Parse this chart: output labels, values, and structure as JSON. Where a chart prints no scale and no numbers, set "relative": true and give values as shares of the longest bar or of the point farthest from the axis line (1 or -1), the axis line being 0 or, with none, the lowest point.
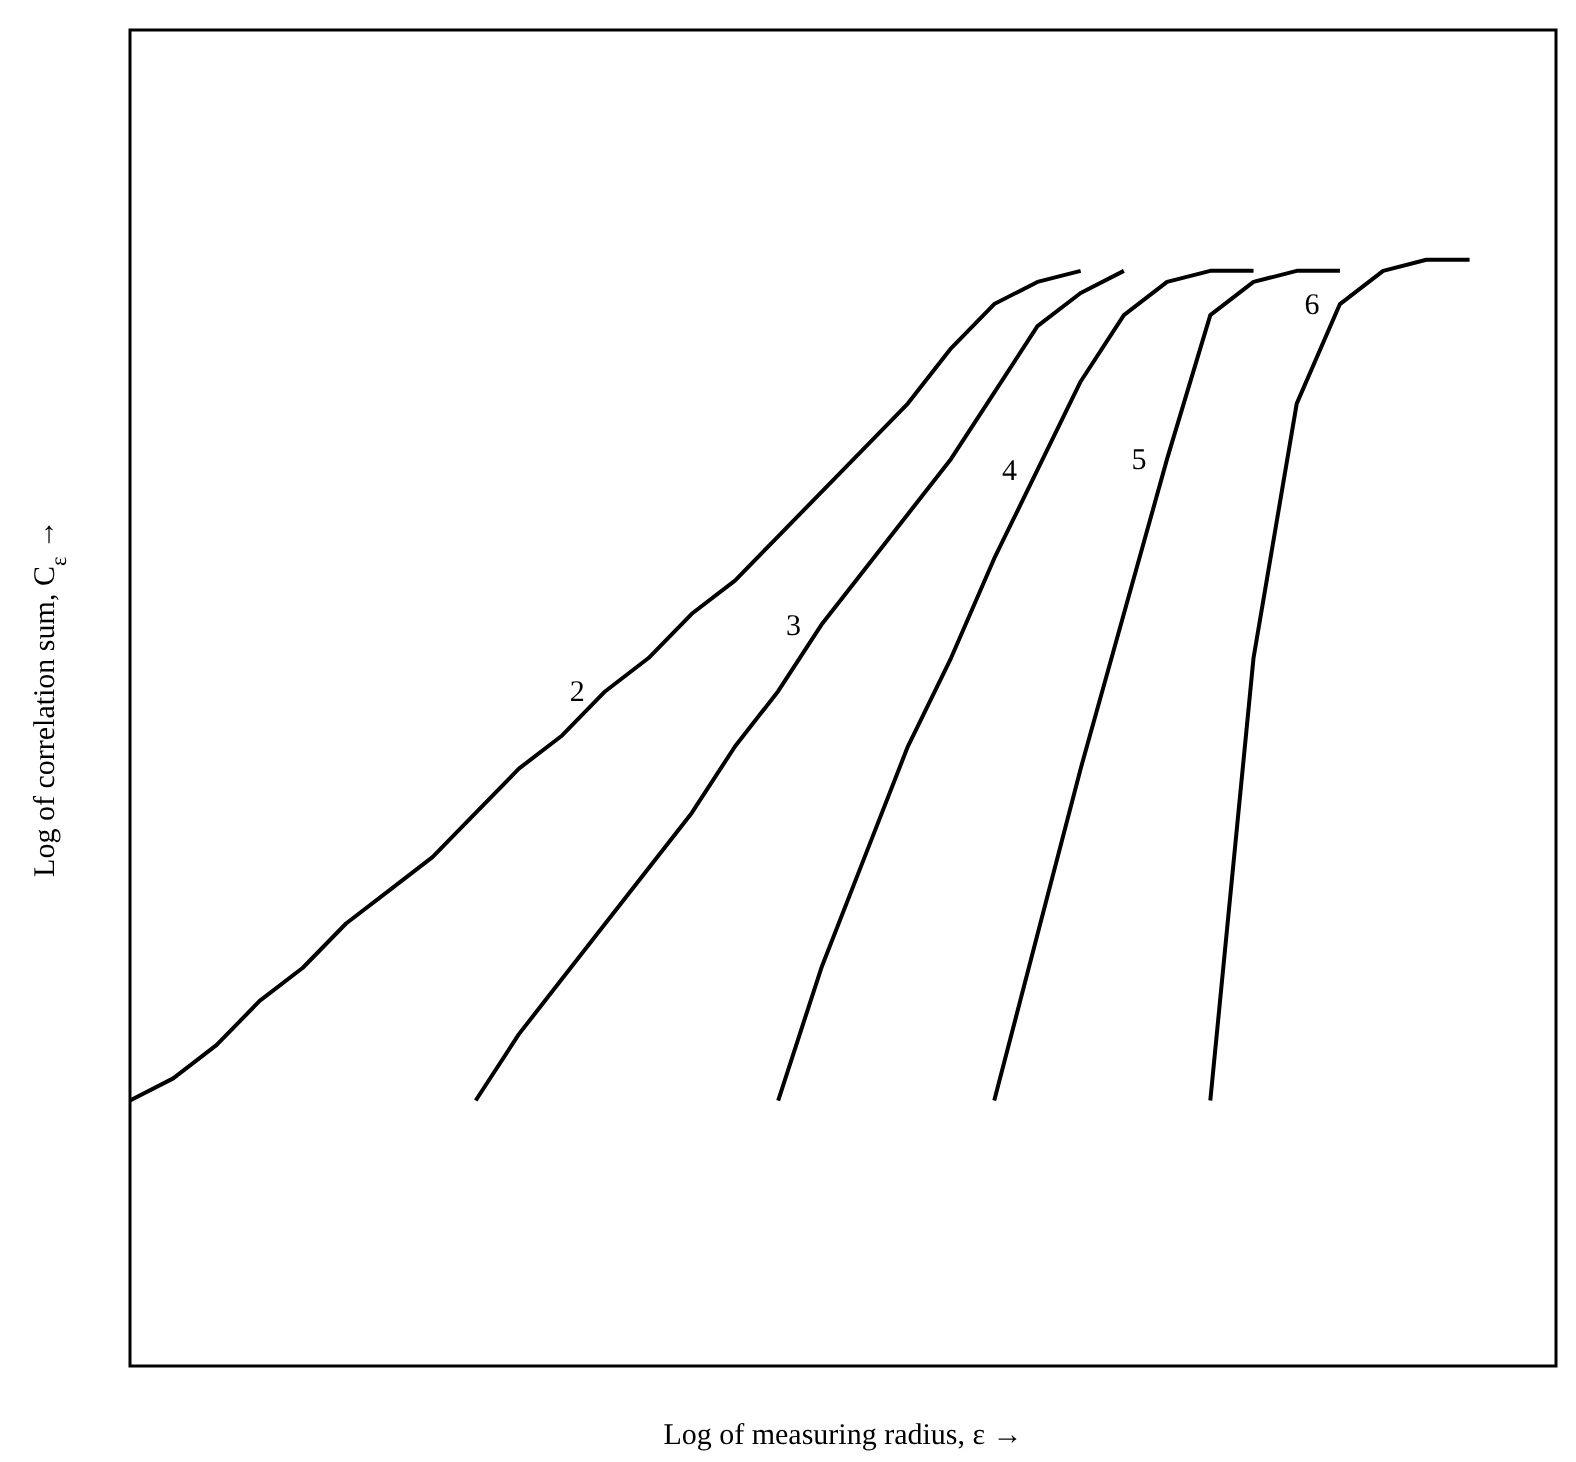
{
  "chart_data": {
    "type": "line",
    "relative": true,
    "xlabel": "Log of measuring radius, ε →",
    "ylabel": "Log of correlation sum, C$_{ε}$ →",
    "line_style": "solid",
    "categories": [
      null,
      null,
      null,
      null,
      null,
      null,
      null,
      null,
      null,
      null,
      null,
      null,
      null,
      null,
      null,
      null,
      null,
      null,
      null,
      null,
      null,
      null,
      null,
      null,
      null,
      null,
      null,
      null,
      null,
      null,
      null,
      null,
      null,
      null
    ],
    "series": [
      {
        "name": "2",
        "color": "#000000",
        "values": [
          0.24,
          0.26,
          0.29,
          0.33,
          0.36,
          0.4,
          0.43,
          0.46,
          0.5,
          0.54,
          0.57,
          0.61,
          0.64,
          0.68,
          0.71,
          0.75,
          0.79,
          0.83,
          0.87,
          0.92,
          0.96,
          0.98,
          0.99,
          null,
          null,
          null,
          null,
          null,
          null,
          null,
          null,
          null,
          null,
          null
        ]
      },
      {
        "name": "3",
        "color": "#000000",
        "values": [
          null,
          null,
          null,
          null,
          null,
          null,
          null,
          null,
          0.24,
          0.3,
          0.35,
          0.4,
          0.45,
          0.5,
          0.56,
          0.61,
          0.67,
          0.72,
          0.77,
          0.82,
          0.88,
          0.94,
          0.97,
          0.99,
          null,
          null,
          null,
          null,
          null,
          null,
          null,
          null,
          null,
          null
        ]
      },
      {
        "name": "4",
        "color": "#000000",
        "values": [
          null,
          null,
          null,
          null,
          null,
          null,
          null,
          null,
          null,
          null,
          null,
          null,
          null,
          null,
          null,
          0.24,
          0.36,
          0.46,
          0.56,
          0.64,
          0.73,
          0.81,
          0.89,
          0.95,
          0.98,
          0.99,
          0.99,
          null,
          null,
          null,
          null,
          null,
          null,
          null
        ]
      },
      {
        "name": "5",
        "color": "#000000",
        "values": [
          null,
          null,
          null,
          null,
          null,
          null,
          null,
          null,
          null,
          null,
          null,
          null,
          null,
          null,
          null,
          null,
          null,
          null,
          null,
          null,
          0.24,
          0.39,
          0.54,
          0.68,
          0.82,
          0.95,
          0.98,
          0.99,
          0.99,
          null,
          null,
          null,
          null,
          null
        ]
      },
      {
        "name": "6",
        "color": "#000000",
        "values": [
          null,
          null,
          null,
          null,
          null,
          null,
          null,
          null,
          null,
          null,
          null,
          null,
          null,
          null,
          null,
          null,
          null,
          null,
          null,
          null,
          null,
          null,
          null,
          null,
          null,
          0.24,
          0.64,
          0.87,
          0.96,
          0.99,
          1,
          1,
          null,
          null
        ]
      }
    ]
  }
}
